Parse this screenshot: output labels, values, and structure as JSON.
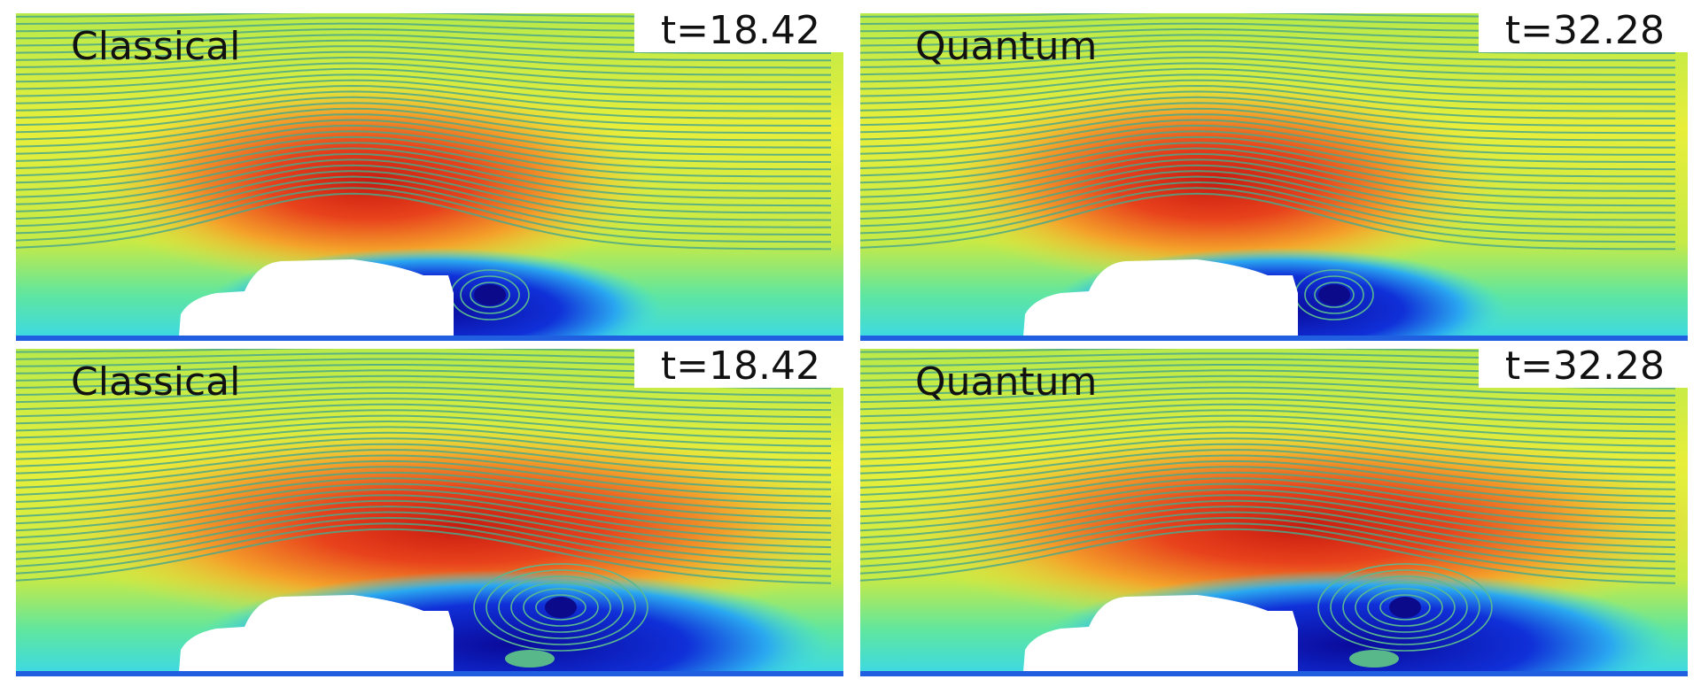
{
  "panels": [
    {
      "label": "Classical",
      "time": "t=18.42"
    },
    {
      "label": "Quantum",
      "time": "t=32.28"
    },
    {
      "label": "Classical",
      "time": "t=18.42"
    },
    {
      "label": "Quantum",
      "time": "t=32.28"
    }
  ]
}
